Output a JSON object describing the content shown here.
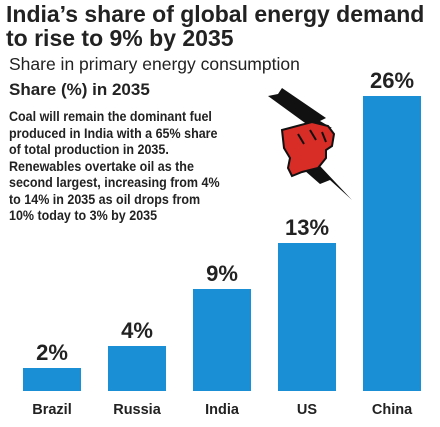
{
  "header": {
    "title_line1": "India’s share of global energy demand",
    "title_line2": "to rise to 9% by 2035",
    "subtitle": "Share in primary energy consumption",
    "share_label": "Share (%) in 2035"
  },
  "note": {
    "lines": [
      "Coal will remain the dominant fuel",
      "produced in India with a 65% share",
      "of total production in 2035.",
      "Renewables overtake oil as the",
      "second largest, increasing from 4%",
      "to 14% in 2035 as oil drops from",
      "10% today to 3% by 2035"
    ]
  },
  "icons": {
    "illustration": "raised-fist-lightning-icon"
  },
  "colors": {
    "bar": "#1b8fd6",
    "fist": "#d82c27",
    "text": "#222222"
  },
  "chart_data": {
    "type": "bar",
    "categories": [
      "Brazil",
      "Russia",
      "India",
      "US",
      "China"
    ],
    "values": [
      2,
      4,
      9,
      13,
      26
    ],
    "value_labels": [
      "2%",
      "4%",
      "9%",
      "13%",
      "26%"
    ],
    "title": "India’s share of global energy demand to rise to 9% by 2035",
    "subtitle": "Share in primary energy consumption",
    "ylabel": "Share (%) in 2035",
    "ylim": [
      0,
      26
    ],
    "grid": false,
    "legend": "none"
  }
}
